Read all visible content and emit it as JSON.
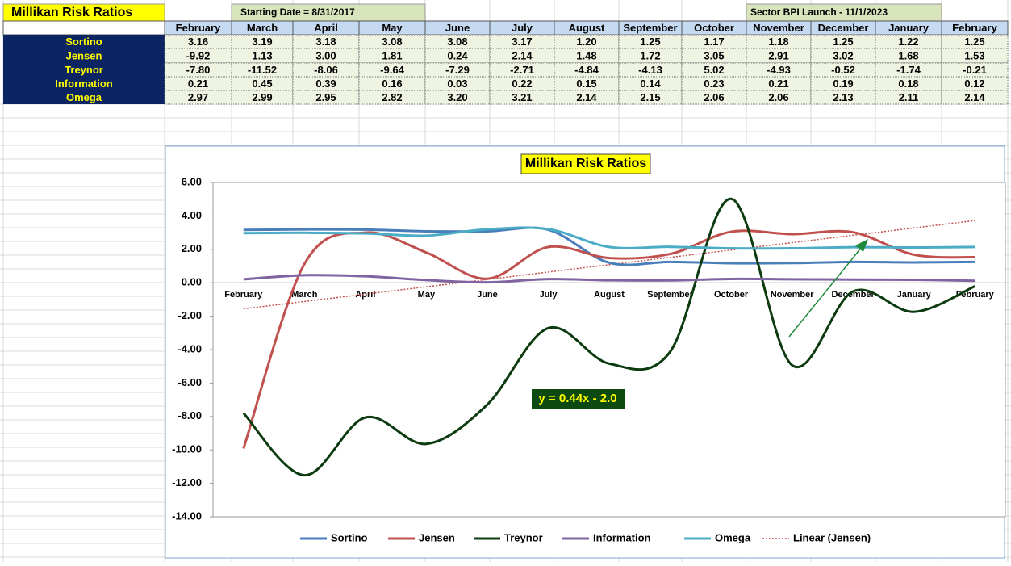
{
  "header": {
    "title": "Millikan Risk Ratios",
    "start_note": "Starting Date = 8/31/2017",
    "launch_note": "Sector BPI Launch - 11/1/2023"
  },
  "chart_data": {
    "type": "line",
    "title": "Millikan Risk Ratios",
    "categories": [
      "February",
      "March",
      "April",
      "May",
      "June",
      "July",
      "August",
      "September",
      "October",
      "November",
      "December",
      "January",
      "February"
    ],
    "series": [
      {
        "name": "Sortino",
        "color": "#4a7ebb",
        "values": [
          3.16,
          3.19,
          3.18,
          3.08,
          3.08,
          3.17,
          1.2,
          1.25,
          1.17,
          1.18,
          1.25,
          1.22,
          1.25
        ],
        "value_labels": [
          "3.16",
          "3.19",
          "3.18",
          "3.08",
          "3.08",
          "3.17",
          "1.20",
          "1.25",
          "1.17",
          "1.18",
          "1.25",
          "1.22",
          "1.25"
        ]
      },
      {
        "name": "Jensen",
        "color": "#c0504d",
        "values": [
          -9.92,
          1.13,
          3.0,
          1.81,
          0.24,
          2.14,
          1.48,
          1.72,
          3.05,
          2.91,
          3.02,
          1.68,
          1.53
        ],
        "value_labels": [
          "-9.92",
          "1.13",
          "3.00",
          "1.81",
          "0.24",
          "2.14",
          "1.48",
          "1.72",
          "3.05",
          "2.91",
          "3.02",
          "1.68",
          "1.53"
        ]
      },
      {
        "name": "Treynor",
        "color": "#0d3b10",
        "values": [
          -7.8,
          -11.52,
          -8.06,
          -9.64,
          -7.29,
          -2.71,
          -4.84,
          -4.13,
          5.02,
          -4.93,
          -0.52,
          -1.74,
          -0.21
        ],
        "value_labels": [
          "-7.80",
          "-11.52",
          "-8.06",
          "-9.64",
          "-7.29",
          "-2.71",
          "-4.84",
          "-4.13",
          "5.02",
          "-4.93",
          "-0.52",
          "-1.74",
          "-0.21"
        ]
      },
      {
        "name": "Information",
        "color": "#8064a2",
        "values": [
          0.21,
          0.45,
          0.39,
          0.16,
          0.03,
          0.22,
          0.15,
          0.14,
          0.23,
          0.21,
          0.19,
          0.18,
          0.12
        ],
        "value_labels": [
          "0.21",
          "0.45",
          "0.39",
          "0.16",
          "0.03",
          "0.22",
          "0.15",
          "0.14",
          "0.23",
          "0.21",
          "0.19",
          "0.18",
          "0.12"
        ]
      },
      {
        "name": "Omega",
        "color": "#4bacc6",
        "values": [
          2.97,
          2.99,
          2.95,
          2.82,
          3.2,
          3.21,
          2.14,
          2.15,
          2.06,
          2.06,
          2.13,
          2.11,
          2.14
        ],
        "value_labels": [
          "2.97",
          "2.99",
          "2.95",
          "2.82",
          "3.20",
          "3.21",
          "2.14",
          "2.15",
          "2.06",
          "2.06",
          "2.13",
          "2.11",
          "2.14"
        ]
      }
    ],
    "trendline": {
      "name": "Linear (Jensen)",
      "color": "#c0504d",
      "slope": 0.44,
      "intercept": -2.0,
      "equation": "y = 0.44x - 2.0"
    },
    "ylim": [
      -14,
      6
    ],
    "yticks": [
      {
        "value": -14,
        "label": "-14.00"
      },
      {
        "value": -12,
        "label": "-12.00"
      },
      {
        "value": -10,
        "label": "-10.00"
      },
      {
        "value": -8,
        "label": "-8.00"
      },
      {
        "value": -6,
        "label": "-6.00"
      },
      {
        "value": -4,
        "label": "-4.00"
      },
      {
        "value": -2,
        "label": "-2.00"
      },
      {
        "value": 0,
        "label": "0.00"
      },
      {
        "value": 2,
        "label": "2.00"
      },
      {
        "value": 4,
        "label": "4.00"
      },
      {
        "value": 6,
        "label": "6.00"
      }
    ],
    "grid": false,
    "smooth": true,
    "legend": "bottom"
  }
}
